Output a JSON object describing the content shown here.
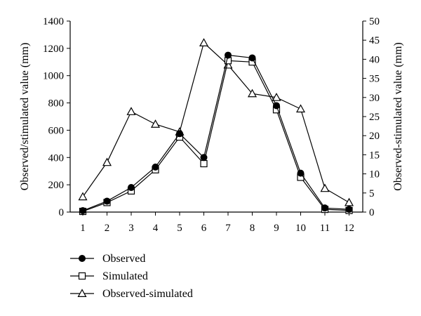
{
  "chart_data": {
    "type": "line",
    "x": [
      1,
      2,
      3,
      4,
      5,
      6,
      7,
      8,
      9,
      10,
      11,
      12
    ],
    "ylabel": "Observed/stimulated value (mm)",
    "y2label": "Observed-stimulated value (mm)",
    "ylim": [
      0,
      1400
    ],
    "y2lim": [
      0,
      50
    ],
    "yticks": [
      0,
      200,
      400,
      600,
      800,
      1000,
      1200,
      1400
    ],
    "y2ticks": [
      0,
      5,
      10,
      15,
      20,
      25,
      30,
      35,
      40,
      45,
      50
    ],
    "grid": false,
    "legend_position": "bottom-left",
    "series": [
      {
        "name": "Observed",
        "axis": "left",
        "marker": "filled-circle",
        "values": [
          10,
          80,
          180,
          330,
          575,
          400,
          1150,
          1130,
          780,
          285,
          30,
          20
        ]
      },
      {
        "name": "Simulated",
        "axis": "left",
        "marker": "open-square",
        "values": [
          5,
          70,
          155,
          310,
          550,
          355,
          1110,
          1100,
          750,
          255,
          20,
          12
        ]
      },
      {
        "name": "Observed-simulated",
        "axis": "right",
        "marker": "open-triangle",
        "values": [
          4,
          13,
          26.3,
          23,
          21,
          44.3,
          38.5,
          31,
          30,
          27,
          6.2,
          2.5
        ]
      }
    ]
  }
}
